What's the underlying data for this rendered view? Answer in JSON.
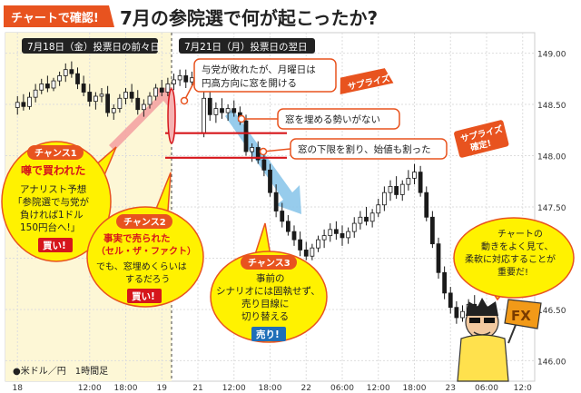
{
  "header": {
    "badge": "チャートで確認!",
    "title": "7月の参院選で何が起こったか?"
  },
  "panels": {
    "left_label": "7月18日（金）投票日の前々日",
    "right_label": "7月21日（月）投票日の翌日"
  },
  "footer": {
    "legend": "●米ドル／円　1時間足"
  },
  "annotations": {
    "surprise1_text": [
      "与党が敗れたが、月曜日は",
      "円高方向に窓を開ける"
    ],
    "surprise1_tag": "サプライズ",
    "gap_text": "窓を埋める勢いがない",
    "break_text": "窓の下限を割り、始値も割った",
    "surprise2_tag": [
      "サプライズ",
      "確定!"
    ],
    "chance1": {
      "tag": "チャンス1",
      "title": "噂で買われた",
      "lines": [
        "アナリスト予想",
        "「参院選で与党が",
        "負ければ1ドル",
        "150円台へ!」"
      ],
      "action": "買い!"
    },
    "chance2": {
      "tag": "チャンス2",
      "title": [
        "事実で売られた",
        "（セル・ザ・ファクト）"
      ],
      "lines": [
        "でも、窓埋めくらいは",
        "するだろう"
      ],
      "action": "買い!"
    },
    "chance3": {
      "tag": "チャンス3",
      "lines": [
        "事前の",
        "シナリオには固執せず、",
        "売り目線に",
        "切り替える"
      ],
      "action": "売り!"
    },
    "advice": [
      "チャートの",
      "動きをよく見て、",
      "柔軟に対応することが",
      "重要だ!"
    ],
    "fx_sign": "FX"
  },
  "colors": {
    "up_candle": "#ffffff",
    "down_candle": "#1a1a1a",
    "highlight_bg": "#fdf7d6",
    "red_line": "#d6161b",
    "orange": "#e8531f",
    "blue_arrow": "#8cc7ea",
    "pink_arrow": "#f4a3a3"
  },
  "chart_data": {
    "type": "candlestick",
    "title": "",
    "xlabel": "",
    "ylabel": "",
    "ylim": [
      145.8,
      149.2
    ],
    "y_ticks": [
      "149.00",
      "148.50",
      "148.00",
      "147.50",
      "147.00",
      "146.50",
      "146.00"
    ],
    "y_tick_values": [
      149.0,
      148.5,
      148.0,
      147.5,
      147.0,
      146.5,
      146.0
    ],
    "x_ticks": [
      "18",
      "12:00",
      "18:00",
      "19",
      "21",
      "12:00",
      "18:00",
      "22",
      "06:00",
      "12:00",
      "18:00",
      "23",
      "06:00",
      "12:0"
    ],
    "x_tick_positions": [
      0,
      12,
      18,
      24,
      30,
      36,
      42,
      48,
      54,
      60,
      66,
      72,
      78,
      84
    ],
    "x_range": [
      -2,
      86
    ],
    "gap_lines": [
      148.22,
      147.98
    ],
    "candles": [
      {
        "i": 0,
        "o": 148.47,
        "h": 148.58,
        "l": 148.4,
        "c": 148.52
      },
      {
        "i": 1,
        "o": 148.52,
        "h": 148.6,
        "l": 148.44,
        "c": 148.48
      },
      {
        "i": 2,
        "o": 148.48,
        "h": 148.62,
        "l": 148.45,
        "c": 148.57
      },
      {
        "i": 3,
        "o": 148.57,
        "h": 148.7,
        "l": 148.52,
        "c": 148.64
      },
      {
        "i": 4,
        "o": 148.64,
        "h": 148.75,
        "l": 148.6,
        "c": 148.7
      },
      {
        "i": 5,
        "o": 148.7,
        "h": 148.78,
        "l": 148.62,
        "c": 148.66
      },
      {
        "i": 6,
        "o": 148.66,
        "h": 148.76,
        "l": 148.63,
        "c": 148.73
      },
      {
        "i": 7,
        "o": 148.73,
        "h": 148.82,
        "l": 148.68,
        "c": 148.78
      },
      {
        "i": 8,
        "o": 148.78,
        "h": 148.9,
        "l": 148.72,
        "c": 148.84
      },
      {
        "i": 9,
        "o": 148.84,
        "h": 148.92,
        "l": 148.76,
        "c": 148.8
      },
      {
        "i": 10,
        "o": 148.8,
        "h": 148.86,
        "l": 148.65,
        "c": 148.7
      },
      {
        "i": 11,
        "o": 148.7,
        "h": 148.78,
        "l": 148.58,
        "c": 148.62
      },
      {
        "i": 12,
        "o": 148.62,
        "h": 148.7,
        "l": 148.48,
        "c": 148.53
      },
      {
        "i": 13,
        "o": 148.53,
        "h": 148.62,
        "l": 148.45,
        "c": 148.58
      },
      {
        "i": 14,
        "o": 148.58,
        "h": 148.66,
        "l": 148.52,
        "c": 148.6
      },
      {
        "i": 15,
        "o": 148.6,
        "h": 148.68,
        "l": 148.38,
        "c": 148.42
      },
      {
        "i": 16,
        "o": 148.42,
        "h": 148.5,
        "l": 148.35,
        "c": 148.46
      },
      {
        "i": 17,
        "o": 148.46,
        "h": 148.6,
        "l": 148.42,
        "c": 148.56
      },
      {
        "i": 18,
        "o": 148.56,
        "h": 148.66,
        "l": 148.5,
        "c": 148.62
      },
      {
        "i": 19,
        "o": 148.62,
        "h": 148.7,
        "l": 148.52,
        "c": 148.56
      },
      {
        "i": 20,
        "o": 148.56,
        "h": 148.64,
        "l": 148.4,
        "c": 148.45
      },
      {
        "i": 21,
        "o": 148.45,
        "h": 148.55,
        "l": 148.38,
        "c": 148.5
      },
      {
        "i": 22,
        "o": 148.5,
        "h": 148.62,
        "l": 148.46,
        "c": 148.58
      },
      {
        "i": 23,
        "o": 148.58,
        "h": 148.7,
        "l": 148.54,
        "c": 148.66
      },
      {
        "i": 24,
        "o": 148.66,
        "h": 148.74,
        "l": 148.58,
        "c": 148.62
      },
      {
        "i": 25,
        "o": 148.62,
        "h": 148.76,
        "l": 148.58,
        "c": 148.7
      },
      {
        "i": 26,
        "o": 148.7,
        "h": 148.8,
        "l": 148.64,
        "c": 148.74
      },
      {
        "i": 27,
        "o": 148.74,
        "h": 148.84,
        "l": 148.68,
        "c": 148.78
      },
      {
        "i": 28,
        "o": 148.78,
        "h": 148.84,
        "l": 148.66,
        "c": 148.72
      },
      {
        "i": 29,
        "o": 148.72,
        "h": 148.82,
        "l": 148.68,
        "c": 148.76
      },
      {
        "i": 31,
        "o": 148.22,
        "h": 148.62,
        "l": 148.18,
        "c": 148.56
      },
      {
        "i": 32,
        "o": 148.56,
        "h": 148.62,
        "l": 148.34,
        "c": 148.4
      },
      {
        "i": 33,
        "o": 148.4,
        "h": 148.52,
        "l": 148.32,
        "c": 148.46
      },
      {
        "i": 34,
        "o": 148.46,
        "h": 148.56,
        "l": 148.36,
        "c": 148.42
      },
      {
        "i": 35,
        "o": 148.42,
        "h": 148.5,
        "l": 148.34,
        "c": 148.46
      },
      {
        "i": 36,
        "o": 148.46,
        "h": 148.54,
        "l": 148.38,
        "c": 148.42
      },
      {
        "i": 37,
        "o": 148.42,
        "h": 148.48,
        "l": 148.3,
        "c": 148.34
      },
      {
        "i": 38,
        "o": 148.34,
        "h": 148.4,
        "l": 148.0,
        "c": 148.04
      },
      {
        "i": 39,
        "o": 148.04,
        "h": 148.12,
        "l": 147.94,
        "c": 148.08
      },
      {
        "i": 40,
        "o": 148.08,
        "h": 148.14,
        "l": 147.92,
        "c": 147.96
      },
      {
        "i": 41,
        "o": 147.96,
        "h": 148.02,
        "l": 147.8,
        "c": 147.86
      },
      {
        "i": 42,
        "o": 147.86,
        "h": 147.92,
        "l": 147.6,
        "c": 147.64
      },
      {
        "i": 43,
        "o": 147.64,
        "h": 147.72,
        "l": 147.4,
        "c": 147.46
      },
      {
        "i": 44,
        "o": 147.46,
        "h": 147.54,
        "l": 147.3,
        "c": 147.36
      },
      {
        "i": 45,
        "o": 147.36,
        "h": 147.42,
        "l": 147.22,
        "c": 147.26
      },
      {
        "i": 46,
        "o": 147.26,
        "h": 147.32,
        "l": 147.12,
        "c": 147.18
      },
      {
        "i": 47,
        "o": 147.18,
        "h": 147.26,
        "l": 147.02,
        "c": 147.08
      },
      {
        "i": 48,
        "o": 147.08,
        "h": 147.16,
        "l": 146.98,
        "c": 147.02
      },
      {
        "i": 49,
        "o": 147.02,
        "h": 147.14,
        "l": 146.98,
        "c": 147.1
      },
      {
        "i": 50,
        "o": 147.1,
        "h": 147.22,
        "l": 147.06,
        "c": 147.18
      },
      {
        "i": 51,
        "o": 147.18,
        "h": 147.28,
        "l": 147.1,
        "c": 147.22
      },
      {
        "i": 52,
        "o": 147.22,
        "h": 147.34,
        "l": 147.16,
        "c": 147.28
      },
      {
        "i": 53,
        "o": 147.28,
        "h": 147.36,
        "l": 147.18,
        "c": 147.24
      },
      {
        "i": 54,
        "o": 147.24,
        "h": 147.32,
        "l": 147.12,
        "c": 147.2
      },
      {
        "i": 55,
        "o": 147.2,
        "h": 147.3,
        "l": 147.14,
        "c": 147.26
      },
      {
        "i": 56,
        "o": 147.26,
        "h": 147.4,
        "l": 147.2,
        "c": 147.34
      },
      {
        "i": 57,
        "o": 147.34,
        "h": 147.46,
        "l": 147.28,
        "c": 147.4
      },
      {
        "i": 58,
        "o": 147.4,
        "h": 147.5,
        "l": 147.32,
        "c": 147.36
      },
      {
        "i": 59,
        "o": 147.36,
        "h": 147.48,
        "l": 147.3,
        "c": 147.44
      },
      {
        "i": 60,
        "o": 147.44,
        "h": 147.58,
        "l": 147.4,
        "c": 147.52
      },
      {
        "i": 61,
        "o": 147.52,
        "h": 147.7,
        "l": 147.46,
        "c": 147.64
      },
      {
        "i": 62,
        "o": 147.64,
        "h": 147.76,
        "l": 147.56,
        "c": 147.7
      },
      {
        "i": 63,
        "o": 147.7,
        "h": 147.8,
        "l": 147.58,
        "c": 147.62
      },
      {
        "i": 64,
        "o": 147.62,
        "h": 147.76,
        "l": 147.56,
        "c": 147.72
      },
      {
        "i": 65,
        "o": 147.72,
        "h": 147.86,
        "l": 147.66,
        "c": 147.78
      },
      {
        "i": 66,
        "o": 147.78,
        "h": 147.92,
        "l": 147.72,
        "c": 147.84
      },
      {
        "i": 67,
        "o": 147.84,
        "h": 147.9,
        "l": 147.6,
        "c": 147.64
      },
      {
        "i": 68,
        "o": 147.64,
        "h": 147.7,
        "l": 147.36,
        "c": 147.4
      },
      {
        "i": 69,
        "o": 147.4,
        "h": 147.46,
        "l": 147.1,
        "c": 147.14
      },
      {
        "i": 70,
        "o": 147.14,
        "h": 147.2,
        "l": 146.8,
        "c": 146.86
      },
      {
        "i": 71,
        "o": 146.86,
        "h": 146.92,
        "l": 146.6,
        "c": 146.66
      },
      {
        "i": 72,
        "o": 146.66,
        "h": 146.72,
        "l": 146.46,
        "c": 146.52
      },
      {
        "i": 73,
        "o": 146.52,
        "h": 146.58,
        "l": 146.36,
        "c": 146.42
      },
      {
        "i": 74,
        "o": 146.42,
        "h": 146.54,
        "l": 146.38,
        "c": 146.48
      },
      {
        "i": 75,
        "o": 146.48,
        "h": 146.6,
        "l": 146.42,
        "c": 146.55
      },
      {
        "i": 76,
        "o": 146.55,
        "h": 146.64,
        "l": 146.44,
        "c": 146.5
      }
    ]
  }
}
